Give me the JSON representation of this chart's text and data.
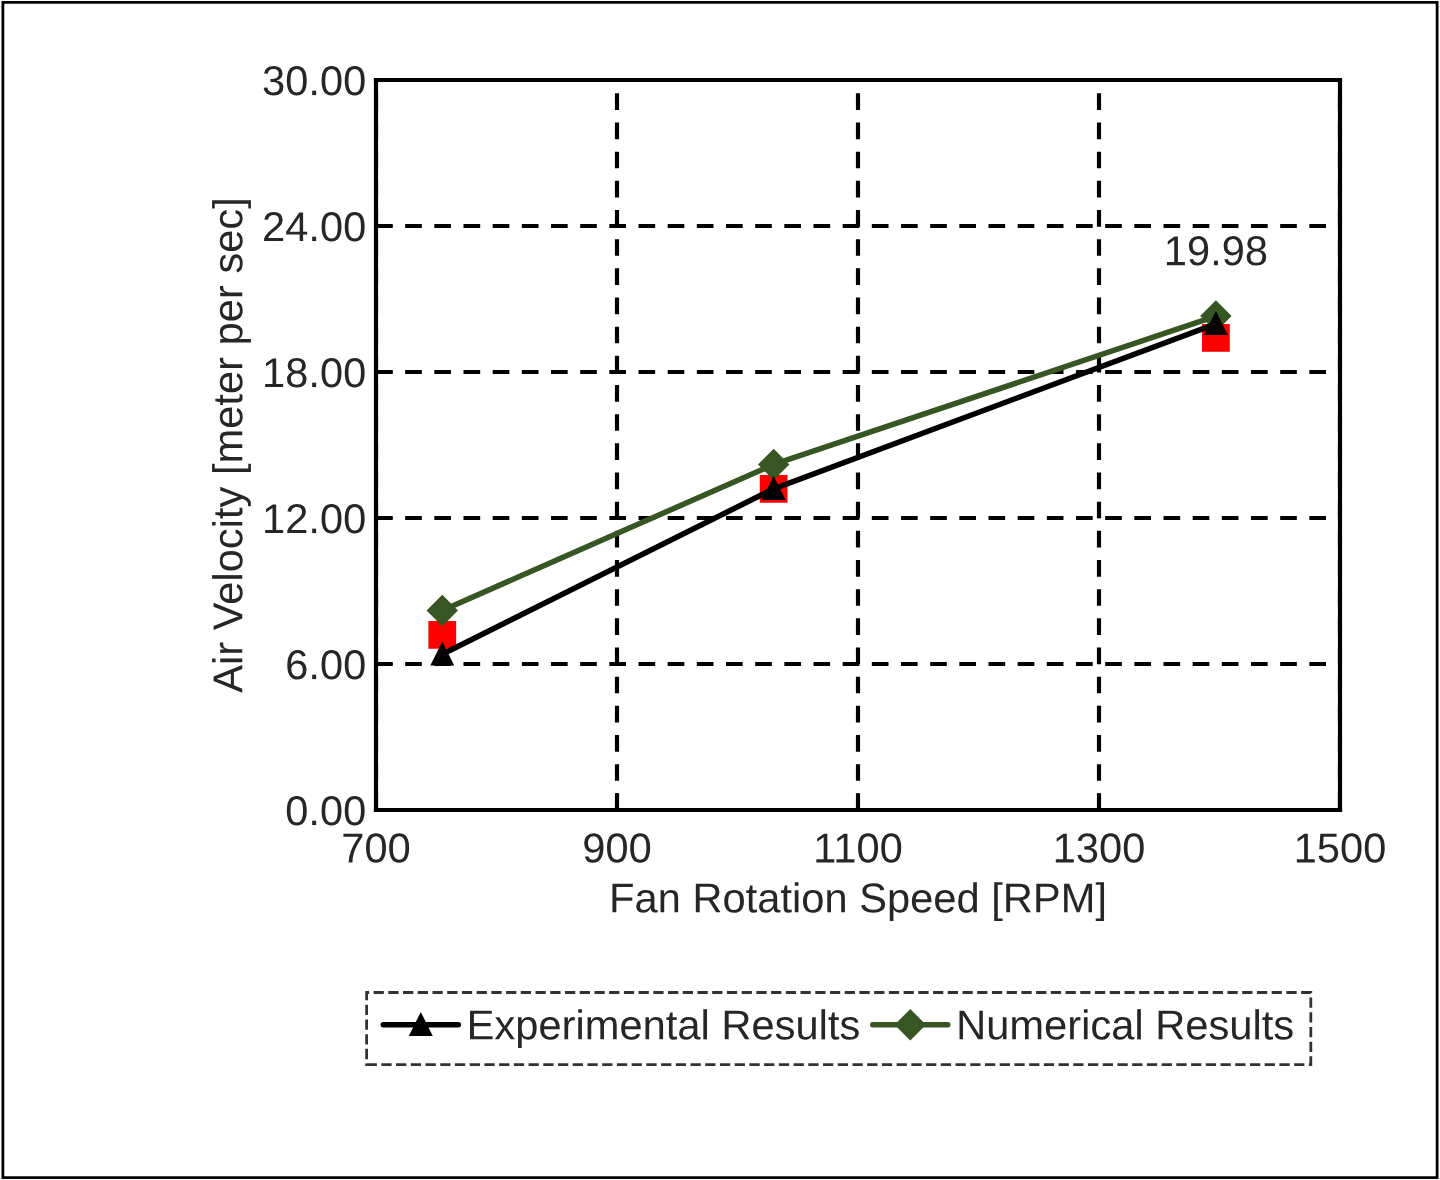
{
  "chart_data": {
    "type": "line",
    "xlabel": "Fan Rotation Speed [RPM]",
    "ylabel": "Air Velocity [meter per sec]",
    "xlim": [
      700,
      1500
    ],
    "xticks": [
      700,
      900,
      1100,
      1300,
      1500
    ],
    "ylim": [
      0,
      30
    ],
    "yticks": [
      {
        "value": 0,
        "label": "0.00"
      },
      {
        "value": 6,
        "label": "6.00"
      },
      {
        "value": 12,
        "label": "12.00"
      },
      {
        "value": 18,
        "label": "18.00"
      },
      {
        "value": 24,
        "label": "24.00"
      },
      {
        "value": 30,
        "label": "30.00"
      }
    ],
    "grid": true,
    "legend": "bottom",
    "series": [
      {
        "name": "Experimental Results",
        "color": "#000000",
        "marker": "triangle",
        "x": [
          755,
          1030,
          1397
        ],
        "values": [
          6.4,
          13.2,
          19.98
        ],
        "value_labels": [
          null,
          null,
          "19.98"
        ]
      },
      {
        "name": "Numerical Results",
        "color": "#375623",
        "marker": "diamond",
        "x": [
          755,
          1030,
          1397
        ],
        "values": [
          8.2,
          14.2,
          20.3
        ]
      },
      {
        "type": "scatter",
        "color": "#ff0000",
        "marker": "square",
        "x": [
          755,
          1030,
          1397
        ],
        "values": [
          7.2,
          13.2,
          19.4
        ]
      }
    ]
  }
}
